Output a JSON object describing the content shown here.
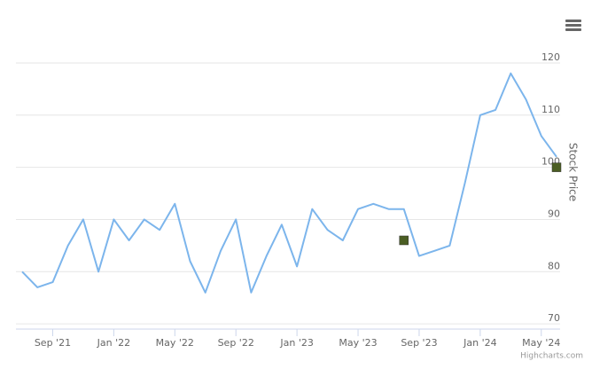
{
  "chart_data": {
    "type": "line",
    "y_axis_title": "Stock Price",
    "credits": "Highcharts.com",
    "x": [
      "2021-07",
      "2021-08",
      "2021-09",
      "2021-10",
      "2021-11",
      "2021-12",
      "2022-01",
      "2022-02",
      "2022-03",
      "2022-04",
      "2022-05",
      "2022-06",
      "2022-07",
      "2022-08",
      "2022-09",
      "2022-10",
      "2022-11",
      "2022-12",
      "2023-01",
      "2023-02",
      "2023-03",
      "2023-04",
      "2023-05",
      "2023-06",
      "2023-07",
      "2023-08",
      "2023-09",
      "2023-10",
      "2023-11",
      "2023-12",
      "2024-01",
      "2024-02",
      "2024-03",
      "2024-04",
      "2024-05",
      "2024-06"
    ],
    "series": [
      {
        "color": "#7cb5ec",
        "values": [
          80,
          77,
          78,
          85,
          90,
          80,
          90,
          86,
          90,
          88,
          93,
          82,
          76,
          84,
          90,
          76,
          83,
          89,
          81,
          92,
          88,
          86,
          92,
          93,
          92,
          92,
          83,
          84,
          85,
          97,
          110,
          111,
          118,
          113,
          106,
          102
        ]
      },
      {
        "color": "#4b5e23",
        "marker": "square",
        "values": [
          null,
          null,
          null,
          null,
          null,
          null,
          null,
          null,
          null,
          null,
          null,
          null,
          null,
          null,
          null,
          null,
          null,
          null,
          null,
          null,
          null,
          null,
          null,
          null,
          null,
          86,
          null,
          null,
          null,
          null,
          null,
          null,
          null,
          null,
          null,
          100
        ]
      }
    ],
    "xlim": [
      "2021-07",
      "2024-06"
    ],
    "xticks": [
      {
        "value": "2021-09",
        "label": "Sep '21"
      },
      {
        "value": "2022-01",
        "label": "Jan '22"
      },
      {
        "value": "2022-05",
        "label": "May '22"
      },
      {
        "value": "2022-09",
        "label": "Sep '22"
      },
      {
        "value": "2023-01",
        "label": "Jan '23"
      },
      {
        "value": "2023-05",
        "label": "May '23"
      },
      {
        "value": "2023-09",
        "label": "Sep '23"
      },
      {
        "value": "2024-01",
        "label": "Jan '24"
      },
      {
        "value": "2024-05",
        "label": "May '24"
      }
    ],
    "ylim": [
      69,
      129
    ],
    "yticks": [
      70,
      80,
      90,
      100,
      110,
      120
    ],
    "grid": true
  }
}
